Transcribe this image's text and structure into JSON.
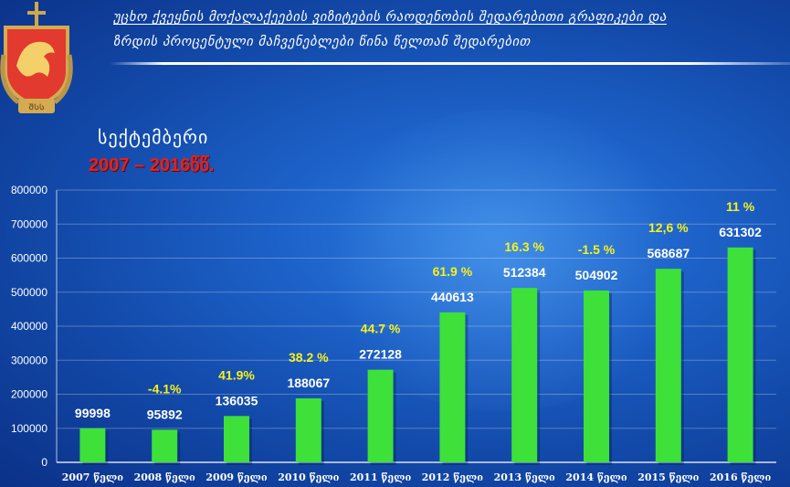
{
  "header": {
    "line1": "უცხო ქვეყნის მოქალაქეების ვიზიტების რაოდენობის შედარებითი გრაფიკები და",
    "line2": "ზრდის პროცენტული მაჩვენებლები წინა წელთან შედარებით",
    "month": "სექტემბერი",
    "period": "2007 – 2016წწ.",
    "emblem_text": "ᲨᲡᲡ"
  },
  "colors": {
    "bar": "#3ee03a",
    "bar_label": "#ffffff",
    "pct_label": "#f6f21a",
    "period": "#e8201b"
  },
  "chart_data": {
    "type": "bar",
    "categories": [
      "2007 წელი",
      "2008 წელი",
      "2009 წელი",
      "2010 წელი",
      "2011 წელი",
      "2012 წელი",
      "2013 წელი",
      "2014 წელი",
      "2015 წელი",
      "2016 წელი"
    ],
    "values": [
      99998,
      95892,
      136035,
      188067,
      272128,
      440613,
      512384,
      504902,
      568687,
      631302
    ],
    "value_labels": [
      "99998",
      "95892",
      "136035",
      "188067",
      "272128",
      "440613",
      "512384",
      "504902",
      "568687",
      "631302"
    ],
    "growth_labels": [
      "",
      "-4.1%",
      "41.9%",
      "38.2 %",
      "44.7 %",
      "61.9 %",
      "16.3 %",
      "-1.5 %",
      "12,6 %",
      "11 %"
    ],
    "y_ticks": [
      "0",
      "100000",
      "200000",
      "300000",
      "400000",
      "500000",
      "600000",
      "700000",
      "800000"
    ],
    "ylim": [
      0,
      800000
    ],
    "grid": true,
    "legend": "none"
  }
}
